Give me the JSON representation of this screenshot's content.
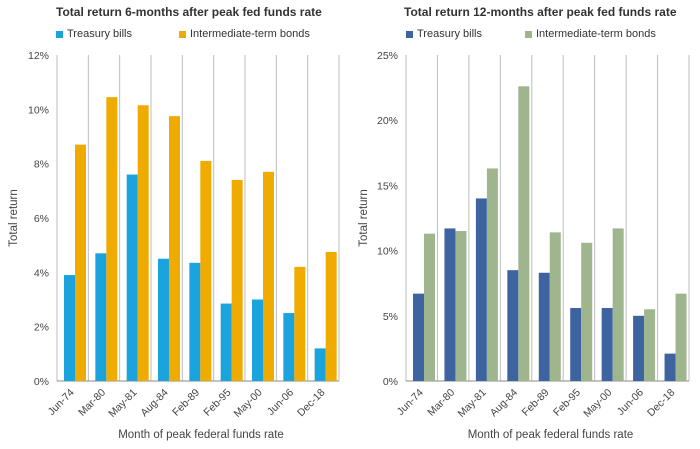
{
  "chart_data": [
    {
      "type": "bar",
      "title": "Total return 6-months after peak fed funds rate",
      "xlabel": "Month of peak federal funds rate",
      "ylabel": "Total return",
      "categories": [
        "Jun-74",
        "Mar-80",
        "May-81",
        "Aug-84",
        "Feb-89",
        "Feb-95",
        "May-00",
        "Jun-06",
        "Dec-18"
      ],
      "series": [
        {
          "name": "Treasury bills",
          "color": "#1aa3dc",
          "values": [
            3.9,
            4.7,
            7.6,
            4.5,
            4.35,
            2.85,
            3.0,
            2.5,
            1.2
          ]
        },
        {
          "name": "Intermediate-term bonds",
          "color": "#f0ab00",
          "values": [
            8.7,
            10.45,
            10.15,
            9.75,
            8.1,
            7.4,
            7.7,
            4.2,
            4.75
          ]
        }
      ],
      "ylim": [
        0,
        12
      ],
      "yticks": [
        "0%",
        "2%",
        "4%",
        "6%",
        "8%",
        "10%",
        "12%"
      ],
      "grid": "vertical category separators",
      "legend": "top-left"
    },
    {
      "type": "bar",
      "title": "Total return 12-months after peak fed funds rate",
      "xlabel": "Month of peak federal funds rate",
      "ylabel": "Total return",
      "categories": [
        "Jun-74",
        "Mar-80",
        "May-81",
        "Aug-84",
        "Feb-89",
        "Feb-95",
        "May-00",
        "Jun-06",
        "Dec-18"
      ],
      "series": [
        {
          "name": "Treasury bills",
          "color": "#3d63a0",
          "values": [
            6.7,
            11.7,
            14.0,
            8.5,
            8.3,
            5.6,
            5.6,
            5.0,
            2.1
          ]
        },
        {
          "name": "Intermediate-term bonds",
          "color": "#9eb58e",
          "values": [
            11.3,
            11.5,
            16.3,
            22.6,
            11.4,
            10.6,
            11.7,
            5.5,
            6.7
          ]
        }
      ],
      "ylim": [
        0,
        25
      ],
      "yticks": [
        "0%",
        "5%",
        "10%",
        "15%",
        "20%",
        "25%"
      ],
      "grid": "vertical category separators",
      "legend": "top-left"
    }
  ]
}
